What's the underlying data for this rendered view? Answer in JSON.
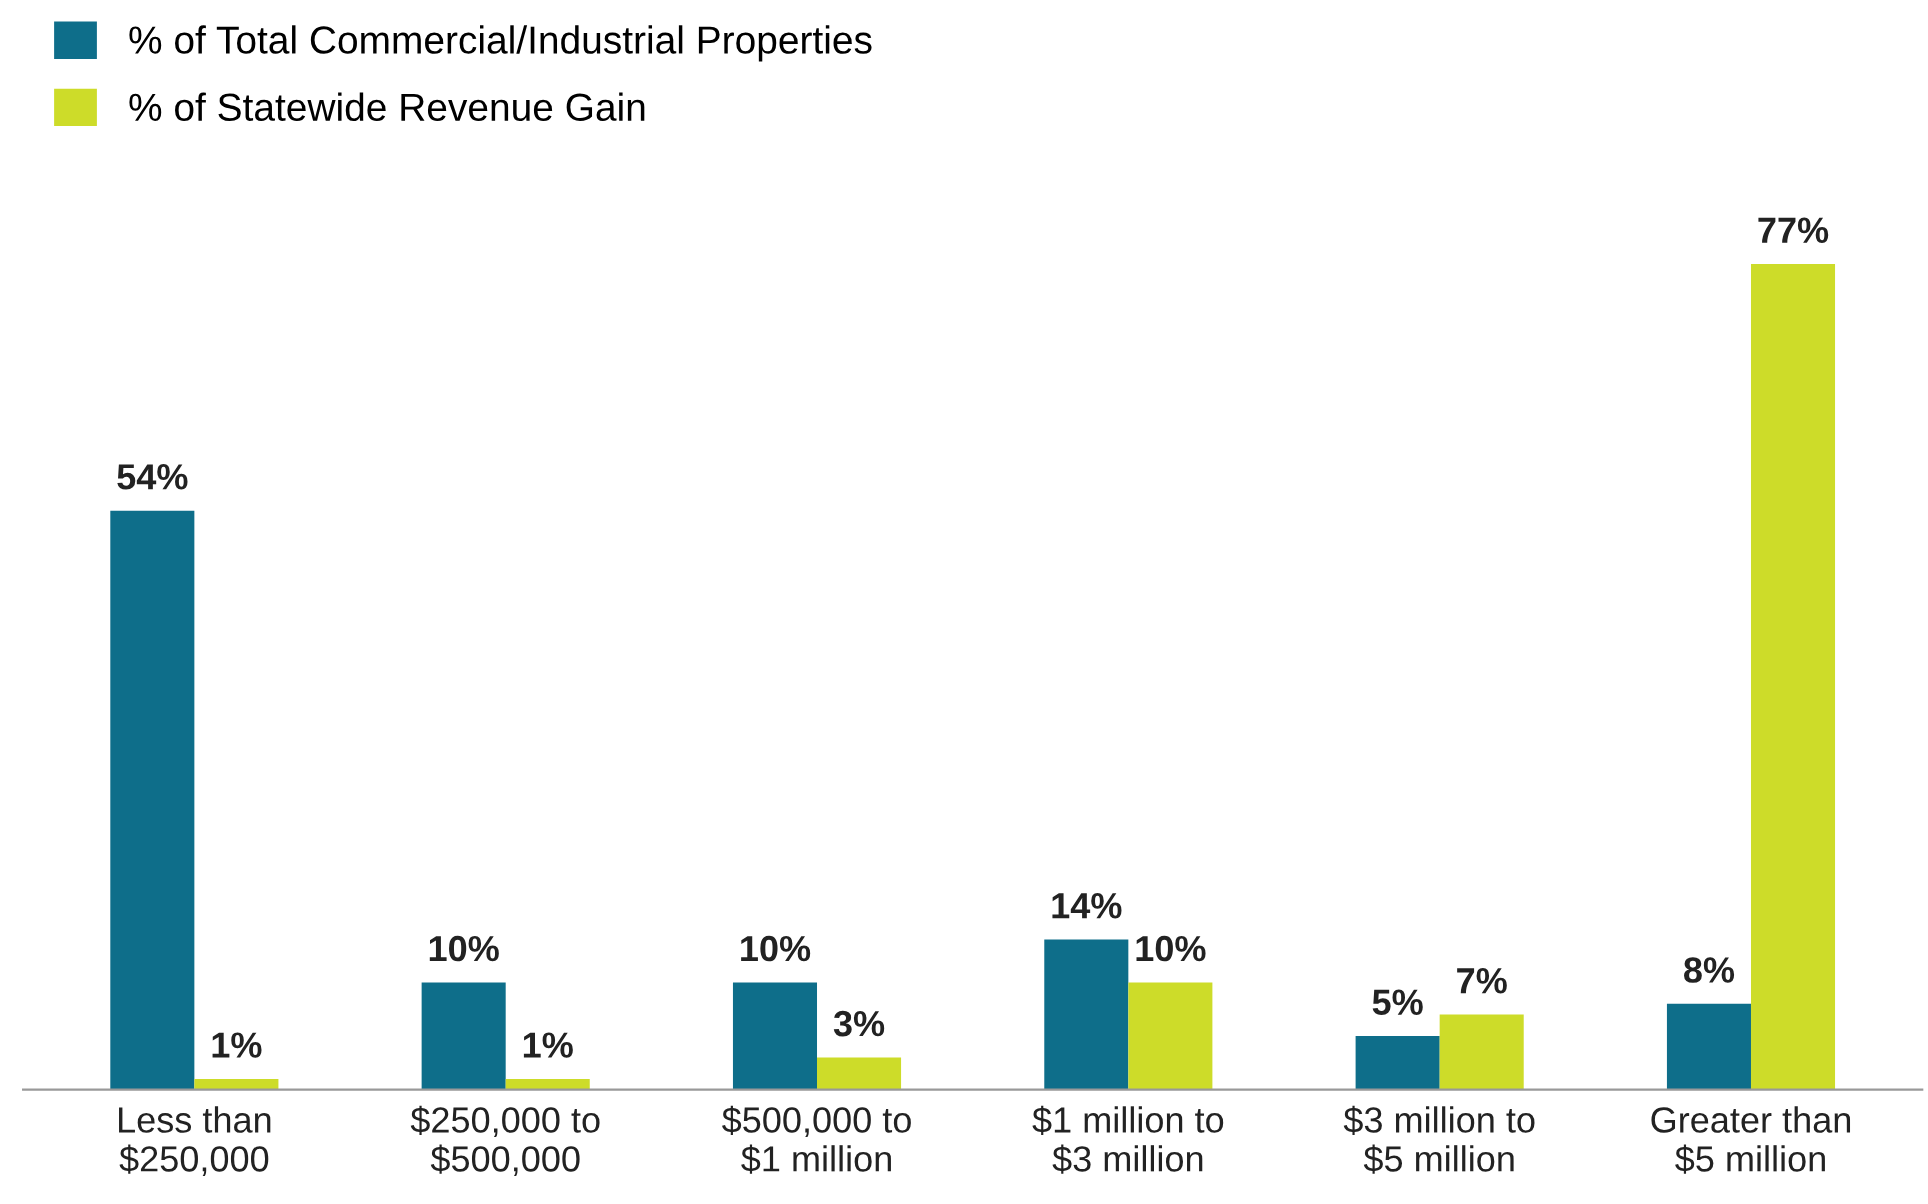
{
  "chart_data": {
    "type": "bar",
    "categories": [
      "Less than\n$250,000",
      "$250,000 to\n$500,000",
      "$500,000 to\n$1 million",
      "$1 million to\n$3 million",
      "$3 million to\n$5 million",
      "Greater than\n$5 million"
    ],
    "series": [
      {
        "name": "% of Total Commercial/Industrial Properties",
        "color": "#0e6e8a",
        "values": [
          54,
          10,
          10,
          14,
          5,
          8
        ],
        "value_labels": [
          "54%",
          "10%",
          "10%",
          "14%",
          "5%",
          "8%"
        ]
      },
      {
        "name": "% of Statewide Revenue Gain",
        "color": "#cddc29",
        "values": [
          1,
          1,
          3,
          10,
          7,
          77
        ],
        "value_labels": [
          "1%",
          "1%",
          "3%",
          "10%",
          "7%",
          "77%"
        ]
      }
    ],
    "legend": "top left",
    "grid": false,
    "tick_labels": "x"
  }
}
